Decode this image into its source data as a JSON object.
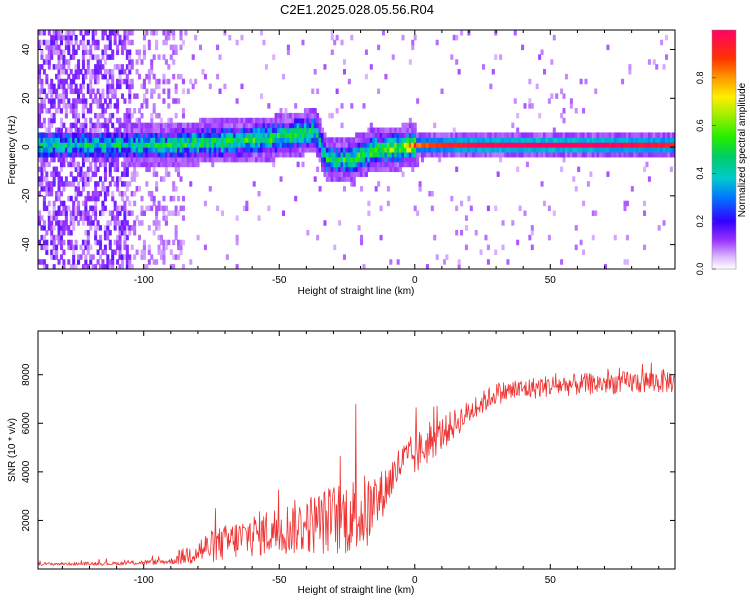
{
  "title": "C2E1.2025.028.05.56.R04",
  "chart_data": [
    {
      "type": "heatmap",
      "xlabel": "Height of straight line (km)",
      "ylabel": "Frequency (Hz)",
      "xlim": [
        -139,
        96
      ],
      "ylim": [
        -50,
        48
      ],
      "x_ticks": [
        -100,
        -50,
        0,
        50
      ],
      "y_ticks": [
        -40,
        -20,
        0,
        20,
        40
      ],
      "colorbar": {
        "label": "Normalized spectral amplitude",
        "range": [
          0,
          1
        ],
        "ticks": [
          0.0,
          0.2,
          0.4,
          0.6,
          0.8
        ]
      },
      "signal_track": [
        {
          "x": -105,
          "freq": 0,
          "amp": 0.35
        },
        {
          "x": -90,
          "freq": 0,
          "amp": 0.4
        },
        {
          "x": -80,
          "freq": 1,
          "amp": 0.45
        },
        {
          "x": -60,
          "freq": 2,
          "amp": 0.45
        },
        {
          "x": -45,
          "freq": 4,
          "amp": 0.45
        },
        {
          "x": -37,
          "freq": 6,
          "amp": 0.45
        },
        {
          "x": -33,
          "freq": -6,
          "amp": 0.4
        },
        {
          "x": -25,
          "freq": -6,
          "amp": 0.45
        },
        {
          "x": -15,
          "freq": -2,
          "amp": 0.5
        },
        {
          "x": -5,
          "freq": -1,
          "amp": 0.6
        },
        {
          "x": 0,
          "freq": 0,
          "amp": 0.8
        },
        {
          "x": 20,
          "freq": 0,
          "amp": 0.95
        },
        {
          "x": 50,
          "freq": 0,
          "amp": 1.0
        },
        {
          "x": 80,
          "freq": 0,
          "amp": 0.95
        },
        {
          "x": 96,
          "freq": 0,
          "amp": 0.9
        }
      ],
      "colors": {
        "low": "#8800ff",
        "signal_core": "#ff2244"
      }
    },
    {
      "type": "line",
      "xlabel": "Height of straight line (km)",
      "ylabel": "SNR (10 * v/v)",
      "xlim": [
        -139,
        96
      ],
      "ylim": [
        0,
        9800
      ],
      "x_ticks": [
        -100,
        -50,
        0,
        50
      ],
      "y_ticks": [
        2000,
        4000,
        6000,
        8000
      ],
      "series": [
        {
          "color": "#ee3333",
          "envelope": [
            {
              "x": -139,
              "mean": 200,
              "spread": 120
            },
            {
              "x": -110,
              "mean": 220,
              "spread": 150
            },
            {
              "x": -90,
              "mean": 300,
              "spread": 250
            },
            {
              "x": -80,
              "mean": 700,
              "spread": 1200
            },
            {
              "x": -60,
              "mean": 1300,
              "spread": 1800
            },
            {
              "x": -40,
              "mean": 1700,
              "spread": 2400
            },
            {
              "x": -25,
              "mean": 2000,
              "spread": 3200
            },
            {
              "x": -16,
              "mean": 2200,
              "spread": 3200
            },
            {
              "x": -12,
              "mean": 3000,
              "spread": 2000
            },
            {
              "x": -5,
              "mean": 4300,
              "spread": 1600
            },
            {
              "x": 0,
              "mean": 4600,
              "spread": 1800
            },
            {
              "x": 10,
              "mean": 5500,
              "spread": 1400
            },
            {
              "x": 20,
              "mean": 6400,
              "spread": 1000
            },
            {
              "x": 30,
              "mean": 7200,
              "spread": 900
            },
            {
              "x": 50,
              "mean": 7500,
              "spread": 900
            },
            {
              "x": 70,
              "mean": 7600,
              "spread": 900
            },
            {
              "x": 96,
              "mean": 7700,
              "spread": 1000
            }
          ]
        }
      ]
    }
  ]
}
